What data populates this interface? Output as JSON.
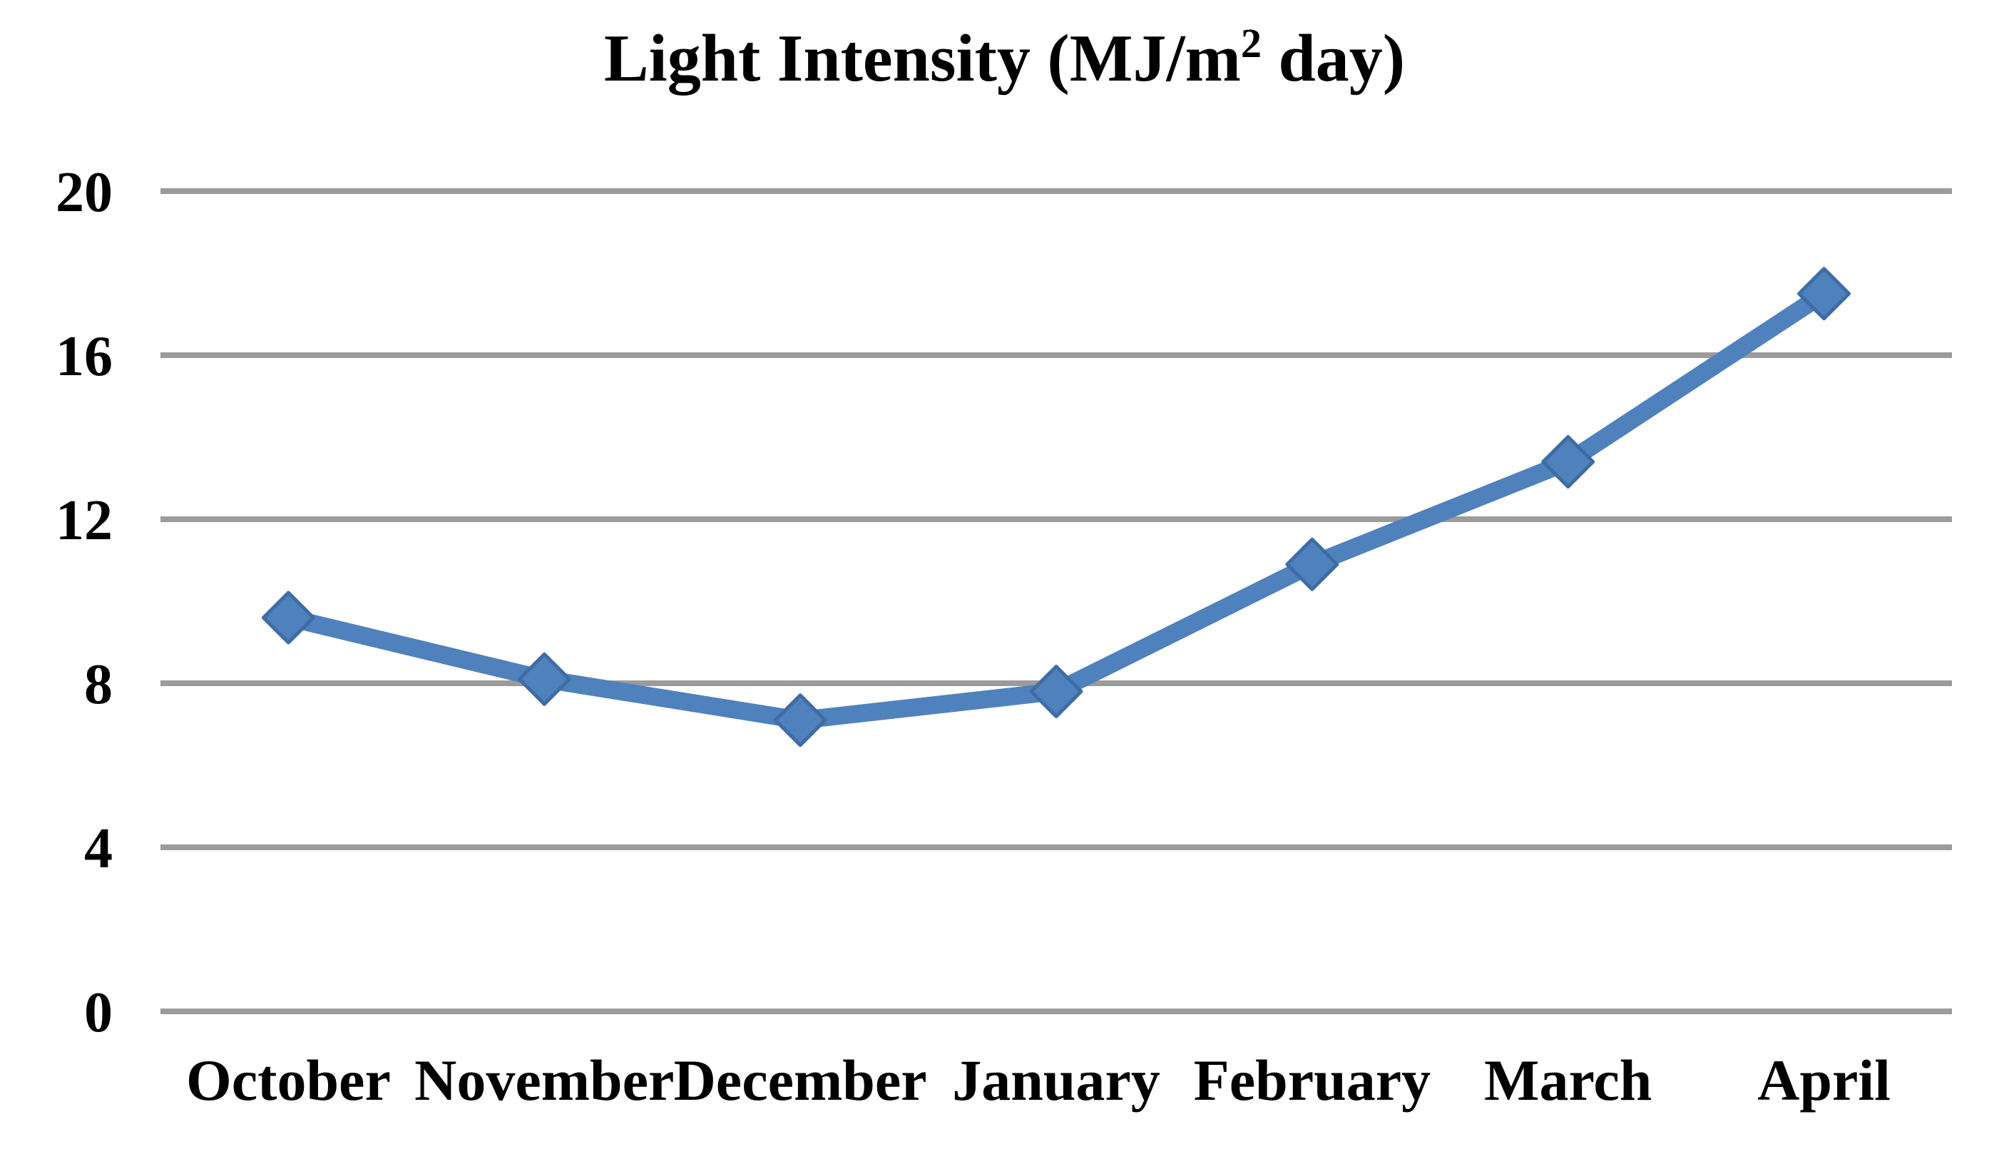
{
  "page": {
    "background": "#FFFFFF"
  },
  "chart_data": {
    "type": "line",
    "title": "Light Intensity (MJ/m² day)",
    "title_parts": {
      "prefix": "Light Intensity (MJ/m",
      "superscript": "2",
      "suffix": " day)"
    },
    "categories": [
      "October",
      "November",
      "December",
      "January",
      "February",
      "March",
      "April"
    ],
    "values": [
      9.6,
      8.1,
      7.1,
      7.8,
      10.9,
      13.4,
      17.5
    ],
    "xlabel": "",
    "ylabel": "",
    "ylim": [
      0,
      20
    ],
    "yticks": [
      0,
      4,
      8,
      12,
      16,
      20
    ],
    "grid": true,
    "legend": false,
    "marker_shape": "diamond",
    "colors": {
      "line": "#4F81BD",
      "marker_fill": "#4F81BD",
      "marker_border": "#3E6CA5",
      "gridline": "#9B9B9B",
      "text": "#000000"
    }
  }
}
